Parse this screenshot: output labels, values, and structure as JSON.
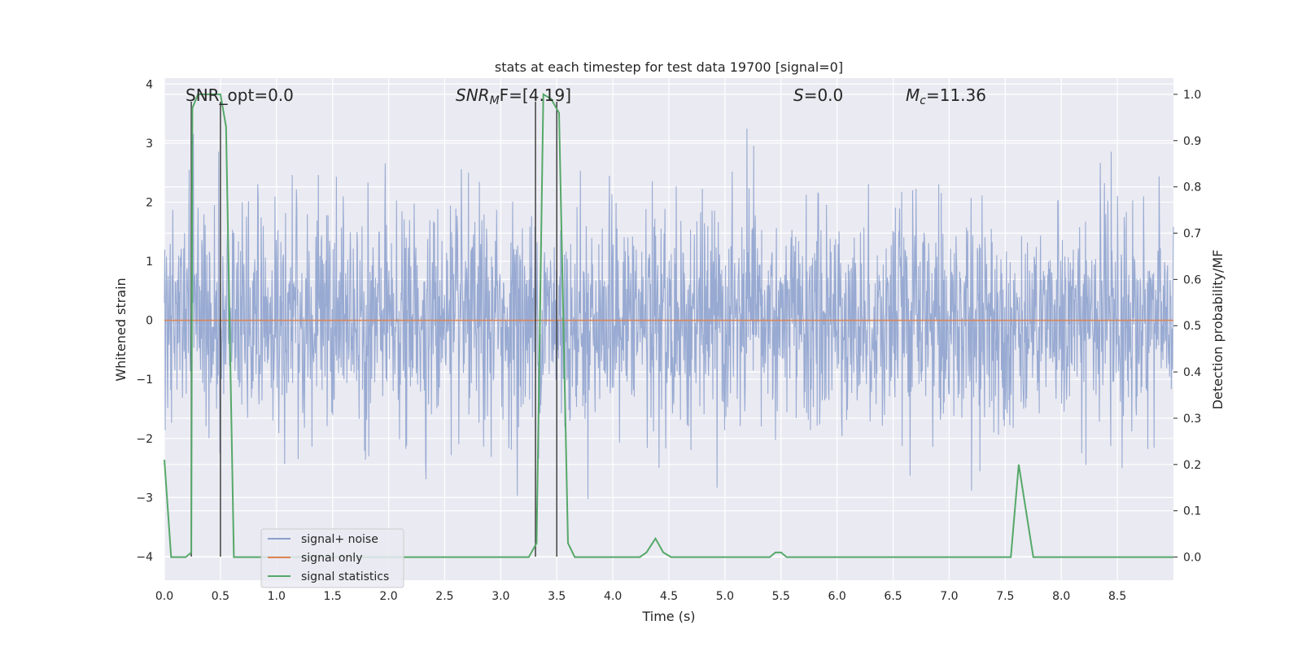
{
  "chart_data": {
    "type": "line",
    "title": "stats at each timestep for test data 19700 [signal=0]",
    "xlabel": "Time (s)",
    "ylabel": "Whitened strain",
    "ylabel_right": "Detection probability/MF",
    "xlim": [
      0.0,
      9.0
    ],
    "ylim": [
      -4.4,
      4.1
    ],
    "ylim_right": [
      -0.05,
      1.035
    ],
    "x_ticks": [
      "0.0",
      "0.5",
      "1.0",
      "1.5",
      "2.0",
      "2.5",
      "3.0",
      "3.5",
      "4.0",
      "4.5",
      "5.0",
      "5.5",
      "6.0",
      "6.5",
      "7.0",
      "7.5",
      "8.0",
      "8.5"
    ],
    "y_ticks": [
      "4",
      "3",
      "2",
      "1",
      "0",
      "−1",
      "−2",
      "−3",
      "−4"
    ],
    "y_ticks_right": [
      "1.0",
      "0.9",
      "0.8",
      "0.7",
      "0.6",
      "0.5",
      "0.4",
      "0.3",
      "0.2",
      "0.1",
      "0.0"
    ],
    "grid": true,
    "legend_position": "lower-left",
    "annotations": {
      "snr_opt": "SNR_opt=0.0",
      "snr_mf_sym": "SNR",
      "snr_mf_sub": "M",
      "snr_mf_rest": "F=[4.19]",
      "s_sym": "S",
      "s_rest": "=0.0",
      "mc_sym": "M",
      "mc_sub": "c",
      "mc_rest": "=11.36"
    },
    "series": [
      {
        "name": "signal+ noise",
        "color": "#8a9fcc",
        "kind": "noise",
        "x_range": [
          0.0,
          9.0
        ],
        "y_envelope_typical": [
          -1.7,
          1.7
        ],
        "y_extremes": [
          -3.8,
          3.7
        ]
      },
      {
        "name": "signal only",
        "color": "#dd8452",
        "x": [
          0.0,
          9.0
        ],
        "y": [
          0.0,
          0.0
        ]
      },
      {
        "name": "signal statistics",
        "color": "#55a868",
        "axis": "right",
        "x": [
          0.0,
          0.06,
          0.19,
          0.24,
          0.25,
          0.3,
          0.5,
          0.55,
          0.62,
          0.75,
          0.8,
          1.0,
          3.25,
          3.32,
          3.38,
          3.45,
          3.52,
          3.6,
          3.66,
          3.75,
          4.24,
          4.3,
          4.38,
          4.45,
          4.52,
          5.4,
          5.45,
          5.5,
          5.55,
          6.0,
          7.55,
          7.62,
          7.75,
          7.8,
          9.0
        ],
        "y": [
          0.21,
          0.0,
          0.0,
          0.01,
          0.97,
          1.0,
          1.0,
          0.93,
          0.0,
          0.0,
          0.0,
          0.0,
          0.0,
          0.03,
          1.0,
          0.99,
          0.96,
          0.03,
          0.0,
          0.0,
          0.0,
          0.01,
          0.04,
          0.01,
          0.0,
          0.0,
          0.01,
          0.01,
          0.0,
          0.0,
          0.0,
          0.2,
          0.0,
          0.0,
          0.0
        ]
      }
    ],
    "vertical_markers": [
      {
        "x": 0.24,
        "y_top": 3.7,
        "y_bottom": -4.0
      },
      {
        "x": 0.5,
        "y_top": 3.7,
        "y_bottom": -4.0
      },
      {
        "x": 3.31,
        "y_top": 3.7,
        "y_bottom": -4.0
      },
      {
        "x": 3.5,
        "y_top": 3.7,
        "y_bottom": -4.0
      }
    ]
  }
}
